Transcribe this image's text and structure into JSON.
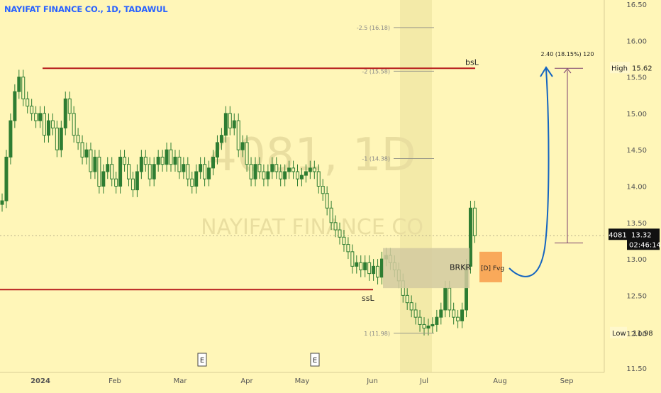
{
  "header": {
    "title": "NAYIFAT FINANCE CO., 1D, TADAWUL"
  },
  "watermark": {
    "symbol": "4081, 1D",
    "name": "NAYIFAT FINANCE CO"
  },
  "colors": {
    "background": "#fff6b8",
    "candle": "#2e7d32",
    "level_line": "#b71c1c",
    "projection": "#1565c0",
    "target_line": "#7b3f6e",
    "fvg_box": "#f9a95a",
    "brkr_box": "#d2caa0",
    "price_label_bg": "#111111",
    "text": "#222222"
  },
  "chart_data": {
    "type": "candlestick",
    "symbol": "4081",
    "interval": "1D",
    "exchange": "TADAWUL",
    "y_axis": {
      "ticks": [
        11.5,
        11.98,
        12.5,
        13.0,
        13.5,
        14.0,
        14.5,
        15.0,
        15.5,
        16.0,
        16.5
      ],
      "tick_labels": [
        "11.50",
        "12.00",
        "12.50",
        "13.00",
        "13.50",
        "14.00",
        "14.50",
        "15.00",
        "15.50",
        "16.00",
        "16.50"
      ],
      "range": [
        11.45,
        16.55
      ]
    },
    "x_axis": {
      "labels": [
        "2024",
        "Feb",
        "Mar",
        "Apr",
        "May",
        "Jun",
        "Jul",
        "Aug",
        "Sep"
      ]
    },
    "close_series": [
      13.8,
      14.4,
      14.9,
      15.3,
      15.5,
      15.2,
      15.1,
      15.0,
      14.9,
      15.0,
      14.7,
      14.9,
      14.8,
      14.5,
      14.8,
      15.2,
      15.0,
      14.7,
      14.6,
      14.4,
      14.5,
      14.2,
      14.4,
      14.0,
      14.2,
      14.3,
      14.1,
      14.0,
      14.4,
      14.3,
      14.1,
      13.95,
      14.2,
      14.4,
      14.3,
      14.1,
      14.3,
      14.4,
      14.3,
      14.5,
      14.3,
      14.4,
      14.2,
      14.3,
      14.1,
      14.0,
      14.2,
      14.3,
      14.1,
      14.25,
      14.4,
      14.6,
      14.7,
      15.0,
      14.8,
      14.9,
      14.5,
      14.6,
      14.3,
      14.1,
      14.3,
      14.2,
      14.1,
      14.2,
      14.3,
      14.2,
      14.1,
      14.2,
      14.25,
      14.2,
      14.1,
      14.15,
      14.2,
      14.25,
      14.2,
      14.0,
      13.9,
      13.7,
      13.5,
      13.4,
      13.3,
      13.2,
      13.1,
      12.9,
      12.95,
      12.85,
      12.95,
      12.8,
      12.9,
      12.75,
      13.0,
      13.05,
      12.95,
      12.85,
      12.7,
      12.5,
      12.4,
      12.3,
      12.2,
      12.1,
      12.05,
      12.08,
      12.1,
      12.2,
      12.3,
      12.6,
      12.3,
      12.2,
      12.15,
      12.3,
      12.9,
      13.7,
      13.32
    ],
    "last_price": 13.32,
    "countdown": "02:46:14",
    "high": {
      "label": "High",
      "value": 15.62
    },
    "low": {
      "label": "Low",
      "value": 11.98
    },
    "levels": [
      {
        "label": "bsL",
        "price": 15.62
      },
      {
        "label": "ssL",
        "price": 12.58
      }
    ],
    "fib_levels": [
      {
        "label": "-2.5 (16.18)",
        "price": 16.18
      },
      {
        "label": "-2 (15.58)",
        "price": 15.58
      },
      {
        "label": "-1 (14.38)",
        "price": 14.38
      },
      {
        "label": "1 (11.98)",
        "price": 11.98
      }
    ],
    "zones": [
      {
        "label": "BRKR",
        "top": 13.15,
        "bottom": 12.6
      },
      {
        "label": "[D] Fvg",
        "top": 13.1,
        "bottom": 12.68
      }
    ],
    "projection_label": "2.40 (18.15%) 120",
    "event_markers": [
      "E",
      "E"
    ]
  }
}
